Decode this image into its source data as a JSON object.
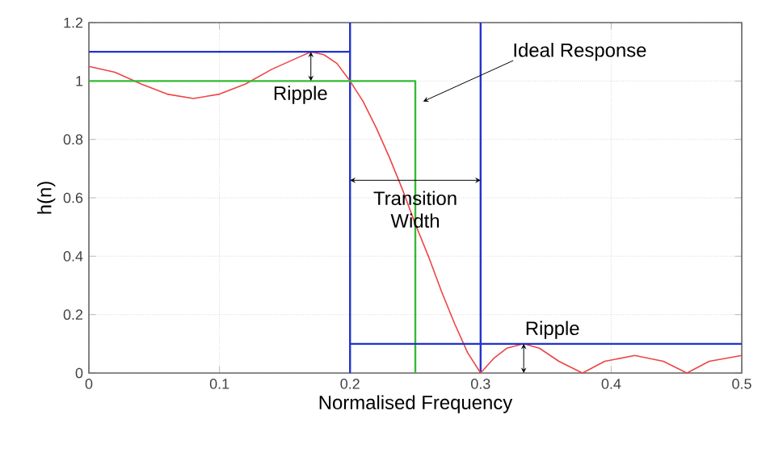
{
  "chart_data": {
    "type": "line",
    "xlabel": "Normalised Frequency",
    "ylabel": "h(n)",
    "xlim": [
      0,
      0.5
    ],
    "ylim": [
      0,
      1.2
    ],
    "xticks": [
      0,
      0.1,
      0.2,
      0.3,
      0.4,
      0.5
    ],
    "yticks": [
      0,
      0.2,
      0.4,
      0.6,
      0.8,
      1,
      1.2
    ],
    "grid": true,
    "marker": "none",
    "series": [
      {
        "color": "#ee4444",
        "x": [
          0,
          0.02,
          0.04,
          0.06,
          0.08,
          0.1,
          0.12,
          0.14,
          0.16,
          0.17,
          0.18,
          0.19,
          0.2,
          0.21,
          0.22,
          0.23,
          0.24,
          0.25,
          0.26,
          0.27,
          0.28,
          0.29,
          0.3,
          0.31,
          0.32,
          0.333,
          0.345,
          0.36,
          0.378,
          0.395,
          0.418,
          0.44,
          0.458,
          0.475,
          0.5
        ],
        "values": [
          1.05,
          1.03,
          0.99,
          0.955,
          0.94,
          0.955,
          0.99,
          1.04,
          1.08,
          1.1,
          1.09,
          1.06,
          1.0,
          0.93,
          0.84,
          0.74,
          0.63,
          0.51,
          0.4,
          0.28,
          0.17,
          0.07,
          0,
          0.05,
          0.085,
          0.1,
          0.085,
          0.04,
          0,
          0.04,
          0.06,
          0.04,
          0,
          0.04,
          0.06
        ]
      },
      {
        "color": "#33bb33",
        "x": [
          0,
          0.25,
          0.25
        ],
        "values": [
          1,
          1,
          0
        ]
      },
      {
        "color": "#2233cc",
        "x": [
          0,
          0.2
        ],
        "values": [
          1.1,
          1.1
        ]
      },
      {
        "color": "#2233cc",
        "x": [
          0.2,
          0.5
        ],
        "values": [
          0.1,
          0.1
        ]
      }
    ],
    "ref_lines": [
      {
        "axis": "x",
        "value": 0.2,
        "color": "#2233cc"
      },
      {
        "axis": "x",
        "value": 0.3,
        "color": "#2233cc"
      }
    ],
    "annotations": [
      {
        "text": "Ripple",
        "x": 0.17,
        "y": 1.1
      },
      {
        "text": "Ideal Response",
        "x": 0.25,
        "y": 0.93
      },
      {
        "text": "Transition Width",
        "x": 0.25,
        "y": 0.66
      },
      {
        "text": "Ripple",
        "x": 0.333,
        "y": 0.1
      }
    ]
  }
}
